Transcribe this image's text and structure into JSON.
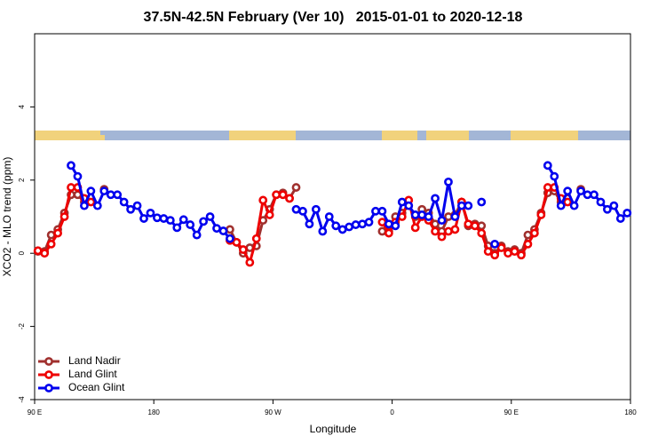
{
  "chart_data": {
    "type": "line",
    "title": "37.5N-42.5N February (Ver 10)   2015-01-01 to 2020-12-18",
    "xlabel": "Longitude",
    "ylabel": "XCO2 - MLO trend (ppm)",
    "xlim": [
      90,
      540
    ],
    "ylim": [
      -4,
      6
    ],
    "xticks": [
      {
        "value": 90,
        "label": "90 E"
      },
      180,
      {
        "value": 270,
        "label": "90 W"
      },
      {
        "value": 360,
        "label": "0"
      },
      {
        "value": 450,
        "label": "90 E"
      },
      {
        "value": 540,
        "label": "180"
      }
    ],
    "yticks": [
      -4,
      -2,
      0,
      2,
      4
    ],
    "legend": "bottomleft",
    "x": [
      92.5,
      97.5,
      102.5,
      107.5,
      112.5,
      117.5,
      122.5,
      127.5,
      132.5,
      137.5,
      142.5,
      147.5,
      152.5,
      157.5,
      162.5,
      167.5,
      172.5,
      177.5,
      182.5,
      187.5,
      192.5,
      197.5,
      202.5,
      207.5,
      212.5,
      217.5,
      222.5,
      227.5,
      232.5,
      237.5,
      242.5,
      247.5,
      252.5,
      257.5,
      262.5,
      267.5,
      272.5,
      277.5,
      282.5,
      287.5,
      292.5,
      297.5,
      302.5,
      307.5,
      312.5,
      317.5,
      322.5,
      327.5,
      332.5,
      337.5,
      342.5,
      347.5,
      352.5,
      357.5,
      362.5,
      367.5,
      372.5,
      377.5,
      382.5,
      387.5,
      392.5,
      397.5,
      402.5,
      407.5,
      412.5,
      417.5,
      422.5,
      427.5,
      432.5,
      437.5,
      442.5,
      447.5,
      452.5,
      457.5,
      462.5,
      467.5,
      472.5,
      477.5,
      482.5,
      487.5,
      492.5,
      497.5,
      502.5,
      507.5,
      512.5,
      517.5,
      522.5,
      527.5,
      532.5,
      537.5
    ],
    "series": [
      {
        "name": "Land Nadir",
        "color": "#a0302e",
        "values": [
          0.05,
          0.05,
          0.5,
          0.65,
          1.1,
          1.6,
          1.6,
          1.4,
          null,
          null,
          1.75,
          null,
          null,
          null,
          null,
          null,
          null,
          null,
          null,
          null,
          null,
          null,
          null,
          null,
          null,
          null,
          null,
          null,
          null,
          0.65,
          0.3,
          0.0,
          0.15,
          0.2,
          0.9,
          1.2,
          1.6,
          1.65,
          1.5,
          1.8,
          null,
          null,
          null,
          null,
          null,
          null,
          null,
          null,
          null,
          null,
          null,
          null,
          0.6,
          0.6,
          1.0,
          1.1,
          1.3,
          1.0,
          1.2,
          1.1,
          0.8,
          0.6,
          1.0,
          1.05,
          1.4,
          0.75,
          0.8,
          0.75,
          0.2,
          0.0,
          0.2,
          0.05,
          0.1,
          0.0,
          0.5,
          0.65,
          1.1,
          1.65,
          1.7,
          1.4,
          1.5,
          null,
          1.75,
          null,
          null,
          null,
          null,
          null,
          null,
          null
        ]
      },
      {
        "name": "Land Glint",
        "color": "#ee0000",
        "values": [
          0.07,
          0.0,
          0.25,
          0.55,
          1.0,
          1.8,
          1.8,
          1.5,
          1.4,
          null,
          null,
          null,
          null,
          null,
          null,
          null,
          null,
          null,
          null,
          null,
          null,
          null,
          null,
          null,
          null,
          null,
          null,
          null,
          null,
          0.35,
          0.3,
          0.1,
          -0.25,
          0.4,
          1.45,
          1.05,
          1.6,
          1.6,
          1.5,
          null,
          null,
          null,
          null,
          null,
          null,
          null,
          null,
          null,
          null,
          null,
          null,
          null,
          0.85,
          0.55,
          0.85,
          1.0,
          1.45,
          0.7,
          1.0,
          0.9,
          0.6,
          0.45,
          0.6,
          0.65,
          1.4,
          0.8,
          0.75,
          0.55,
          0.05,
          -0.05,
          0.15,
          0.0,
          0.05,
          -0.05,
          0.25,
          0.55,
          1.05,
          1.8,
          1.8,
          1.5,
          1.4,
          null,
          null,
          null,
          null,
          null,
          null,
          null,
          null,
          null
        ]
      },
      {
        "name": "Ocean Glint",
        "color": "#0000ee",
        "values": [
          null,
          null,
          null,
          null,
          null,
          2.4,
          2.1,
          1.3,
          1.7,
          1.3,
          1.7,
          1.6,
          1.6,
          1.4,
          1.2,
          1.3,
          0.95,
          1.1,
          0.97,
          0.95,
          0.9,
          0.7,
          0.92,
          0.78,
          0.5,
          0.87,
          1.0,
          0.68,
          0.61,
          0.4,
          null,
          null,
          null,
          null,
          null,
          null,
          null,
          null,
          null,
          1.2,
          1.15,
          0.8,
          1.2,
          0.6,
          1.0,
          0.75,
          0.65,
          0.72,
          0.78,
          0.8,
          0.85,
          1.15,
          1.15,
          0.8,
          0.75,
          1.4,
          1.3,
          1.05,
          1.05,
          1.0,
          1.5,
          0.9,
          1.95,
          1.0,
          1.3,
          1.3,
          null,
          1.4,
          null,
          0.25,
          null,
          null,
          null,
          null,
          null,
          null,
          null,
          2.4,
          2.1,
          1.3,
          1.7,
          1.3,
          1.7,
          1.6,
          1.6,
          1.4,
          1.2,
          1.3,
          0.95,
          1.1
        ]
      }
    ]
  }
}
